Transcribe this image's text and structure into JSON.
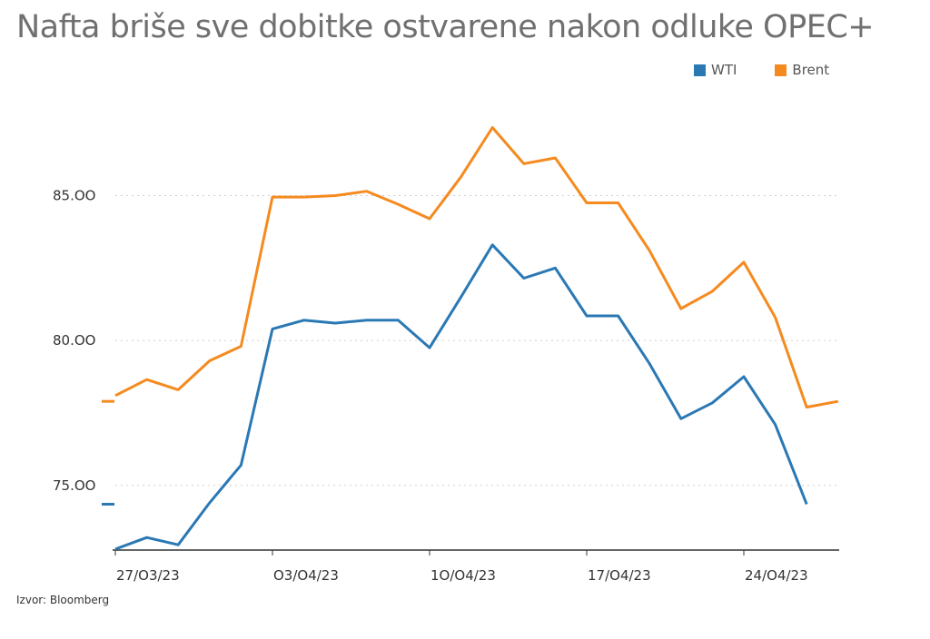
{
  "title": "Nafta briše sve dobitke ostvarene nakon odluke OPEC+",
  "source": "Izvor: Bloomberg",
  "colors": {
    "WTI": "#2a78b4",
    "Brent": "#f58a1f"
  },
  "chart_data": {
    "type": "line",
    "title": "Nafta briše sve dobitke ostvarene nakon odluke OPEC+",
    "xlabel": "",
    "ylabel": "",
    "ylim": [
      72.8,
      88.9
    ],
    "yticks": [
      75,
      80,
      85
    ],
    "ytick_labels": [
      "75.OO",
      "80.OO",
      "85.OO"
    ],
    "xtick_labels": [
      "27/O3/23",
      "O3/O4/23",
      "1O/O4/23",
      "17/O4/23",
      "24/O4/23"
    ],
    "x": [
      "27/03/23",
      "28/03/23",
      "29/03/23",
      "30/03/23",
      "31/03/23",
      "03/04/23",
      "04/04/23",
      "05/04/23",
      "06/04/23",
      "07/04/23",
      "10/04/23",
      "11/04/23",
      "12/04/23",
      "13/04/23",
      "14/04/23",
      "17/04/23",
      "18/04/23",
      "19/04/23",
      "20/04/23",
      "21/04/23",
      "24/04/23",
      "25/04/23",
      "26/04/23",
      "27/04/23"
    ],
    "legend": "top-right",
    "grid": "horizontal dotted",
    "series": [
      {
        "name": "WTI",
        "color": "#2a78b4",
        "values": [
          72.8,
          73.2,
          72.95,
          74.4,
          75.7,
          80.4,
          80.7,
          80.6,
          80.7,
          80.7,
          79.75,
          81.5,
          83.3,
          82.15,
          82.5,
          80.85,
          80.85,
          79.2,
          77.3,
          77.85,
          78.75,
          77.1,
          74.35,
          null
        ]
      },
      {
        "name": "Brent",
        "color": "#f58a1f",
        "values": [
          78.1,
          78.65,
          78.3,
          79.3,
          79.8,
          84.95,
          84.95,
          85.0,
          85.15,
          84.7,
          84.2,
          85.65,
          87.35,
          86.1,
          86.3,
          84.75,
          84.75,
          83.1,
          81.1,
          81.7,
          82.7,
          80.8,
          77.7,
          77.9
        ]
      }
    ]
  }
}
